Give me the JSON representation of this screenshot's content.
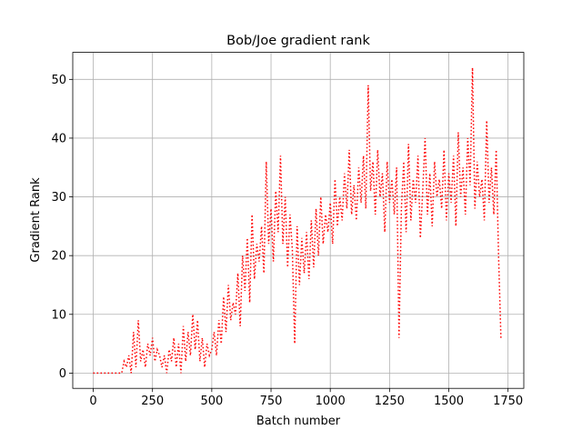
{
  "chart_data": {
    "type": "line",
    "title": "Bob/Joe gradient rank",
    "x_label": "Batch number",
    "y_label": "Gradient Rank",
    "x": [
      0,
      10,
      20,
      30,
      40,
      50,
      60,
      70,
      80,
      90,
      100,
      110,
      120,
      130,
      140,
      150,
      160,
      170,
      180,
      190,
      200,
      210,
      220,
      230,
      240,
      250,
      260,
      270,
      280,
      290,
      300,
      310,
      320,
      330,
      340,
      350,
      360,
      370,
      380,
      390,
      400,
      410,
      420,
      430,
      440,
      450,
      460,
      470,
      480,
      490,
      500,
      510,
      520,
      530,
      540,
      550,
      560,
      570,
      580,
      590,
      600,
      610,
      620,
      630,
      640,
      650,
      660,
      670,
      680,
      690,
      700,
      710,
      720,
      730,
      740,
      750,
      760,
      770,
      780,
      790,
      800,
      810,
      820,
      830,
      840,
      850,
      860,
      870,
      880,
      890,
      900,
      910,
      920,
      930,
      940,
      950,
      960,
      970,
      980,
      990,
      1000,
      1010,
      1020,
      1030,
      1040,
      1050,
      1060,
      1070,
      1080,
      1090,
      1100,
      1110,
      1120,
      1130,
      1140,
      1150,
      1160,
      1170,
      1180,
      1190,
      1200,
      1210,
      1220,
      1230,
      1240,
      1250,
      1260,
      1270,
      1280,
      1290,
      1300,
      1310,
      1320,
      1330,
      1340,
      1350,
      1360,
      1370,
      1380,
      1390,
      1400,
      1410,
      1420,
      1430,
      1440,
      1450,
      1460,
      1470,
      1480,
      1490,
      1500,
      1510,
      1520,
      1530,
      1540,
      1550,
      1560,
      1570,
      1580,
      1590,
      1600,
      1610,
      1620,
      1630,
      1640,
      1650,
      1660,
      1670,
      1680,
      1690,
      1700,
      1710,
      1720
    ],
    "values": [
      0,
      0,
      0,
      0,
      0,
      0,
      0,
      0,
      0,
      0,
      0,
      0,
      0,
      2,
      1,
      3,
      0,
      7,
      1,
      9,
      2,
      4,
      1,
      5,
      3,
      6,
      2,
      4,
      3,
      1,
      3,
      0,
      4,
      2,
      6,
      1,
      5,
      0,
      8,
      2,
      7,
      3,
      10,
      4,
      9,
      2,
      6,
      1,
      5,
      3,
      4,
      7,
      3,
      9,
      5,
      13,
      7,
      15,
      9,
      12,
      10,
      17,
      8,
      20,
      14,
      23,
      12,
      27,
      16,
      22,
      19,
      25,
      17,
      36,
      22,
      28,
      19,
      31,
      24,
      37,
      22,
      30,
      18,
      27,
      21,
      5,
      25,
      15,
      23,
      17,
      24,
      16,
      26,
      18,
      28,
      20,
      30,
      22,
      27,
      24,
      29,
      22,
      33,
      25,
      30,
      26,
      34,
      28,
      38,
      27,
      32,
      26,
      35,
      29,
      37,
      28,
      49,
      31,
      36,
      27,
      38,
      30,
      34,
      24,
      36,
      29,
      33,
      27,
      35,
      6,
      28,
      36,
      24,
      39,
      26,
      33,
      29,
      37,
      23,
      31,
      40,
      27,
      34,
      25,
      36,
      30,
      33,
      28,
      38,
      26,
      34,
      29,
      37,
      25,
      41,
      30,
      35,
      27,
      40,
      32,
      52,
      28,
      36,
      30,
      33,
      26,
      43,
      29,
      35,
      27,
      38,
      20,
      6
    ],
    "color": "#ff0000",
    "line_style": "dotted",
    "xlim": [
      -86.5,
      1816.5
    ],
    "xticks": [
      0,
      250,
      500,
      750,
      1000,
      1250,
      1500,
      1750
    ],
    "ylim": [
      -2.6,
      54.6
    ],
    "yticks": [
      0,
      10,
      20,
      30,
      40,
      50
    ],
    "grid": true
  }
}
